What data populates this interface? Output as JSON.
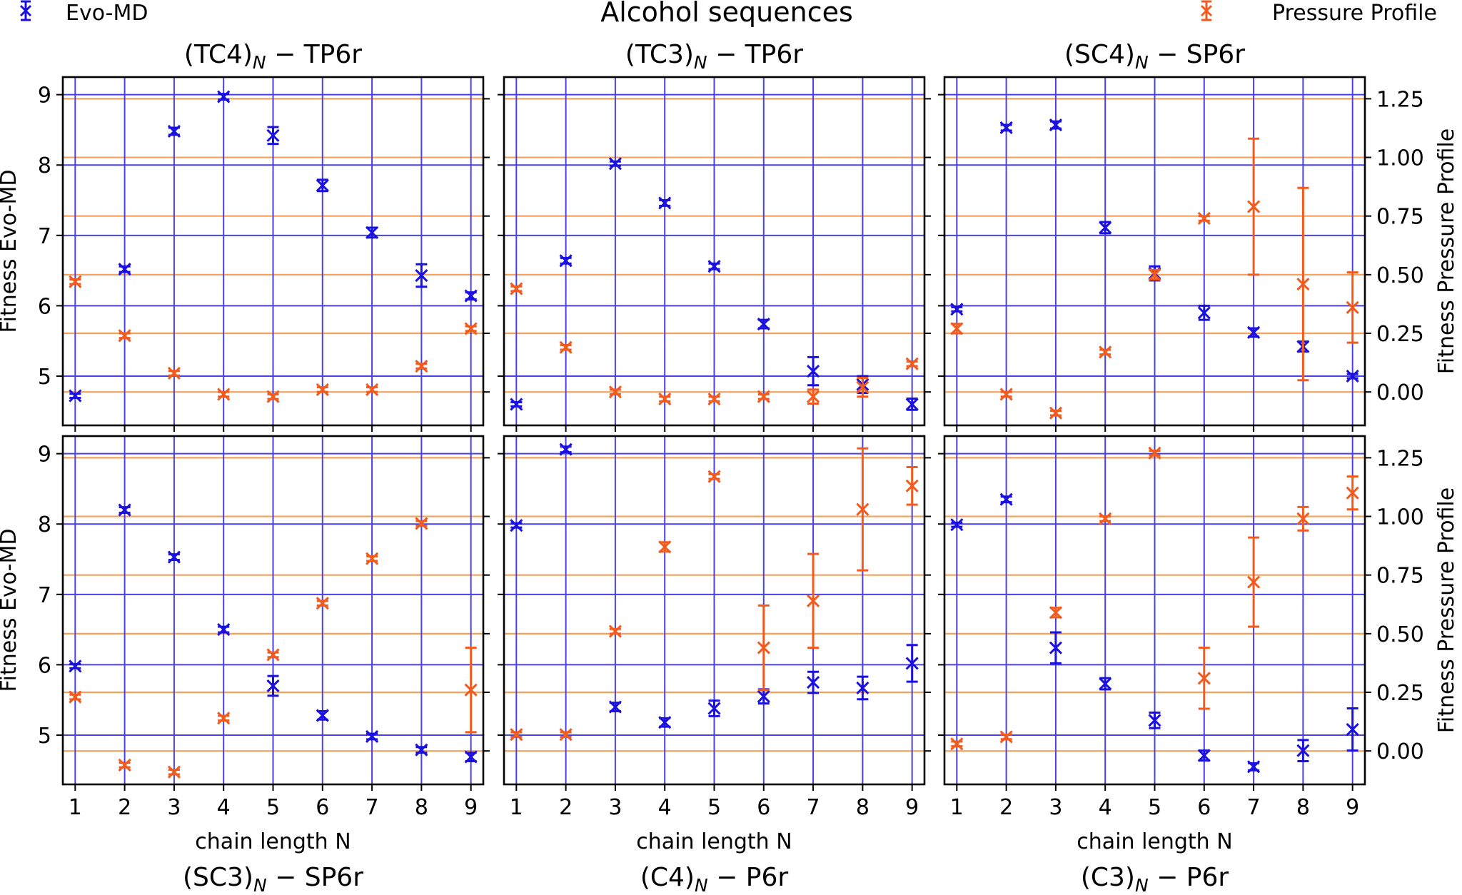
{
  "figure": {
    "suptitle": "Alcohol sequences",
    "legend": [
      {
        "label": "Evo-MD",
        "color": "#1a10e0",
        "position": "top-left"
      },
      {
        "label": "Pressure Profile",
        "color": "#f25a1e",
        "position": "top-right"
      }
    ],
    "colors": {
      "evo": "#1a10e0",
      "evo_grid": "#4a40e6",
      "pp": "#f25a1e",
      "pp_grid": "#f5a15c",
      "frame": "#000000"
    }
  },
  "chart_data": [
    {
      "type": "scatter",
      "title_base": "(TC4)",
      "title_sub": "N",
      "title_tail": " − TP6r",
      "xlabel": "",
      "ylabel": "Fitness Evo-MD",
      "y2label": "",
      "x": [
        1,
        2,
        3,
        4,
        5,
        6,
        7,
        8,
        9
      ],
      "xlim": [
        0.75,
        9.25
      ],
      "ylim": [
        4.3,
        9.25
      ],
      "y2lim": [
        -0.1425,
        1.3425
      ],
      "yticks": [
        5,
        6,
        7,
        8,
        9
      ],
      "y2ticks": [
        0.0,
        0.25,
        0.5,
        0.75,
        1.0,
        1.25
      ],
      "show_xticklabels": false,
      "show_yticklabels": true,
      "show_y2ticklabels": false,
      "series": [
        {
          "name": "Evo-MD",
          "axis": "left",
          "values": [
            4.72,
            6.52,
            8.48,
            8.97,
            8.42,
            7.71,
            7.04,
            6.43,
            6.14
          ],
          "errors": [
            0.03,
            0.04,
            0.05,
            0.04,
            0.12,
            0.08,
            0.07,
            0.16,
            0.05
          ]
        },
        {
          "name": "Pressure Profile",
          "axis": "right",
          "values": [
            0.47,
            0.24,
            0.08,
            -0.01,
            -0.02,
            0.01,
            0.01,
            0.11,
            0.27
          ],
          "errors": [
            0.01,
            0.01,
            0.01,
            0.01,
            0.01,
            0.01,
            0.01,
            0.01,
            0.01
          ]
        }
      ]
    },
    {
      "type": "scatter",
      "title_base": "(TC3)",
      "title_sub": "N",
      "title_tail": " − TP6r",
      "xlabel": "",
      "ylabel": "",
      "y2label": "",
      "x": [
        1,
        2,
        3,
        4,
        5,
        6,
        7,
        8,
        9
      ],
      "xlim": [
        0.75,
        9.25
      ],
      "ylim": [
        4.3,
        9.25
      ],
      "y2lim": [
        -0.1425,
        1.3425
      ],
      "yticks": [
        5,
        6,
        7,
        8,
        9
      ],
      "y2ticks": [
        0.0,
        0.25,
        0.5,
        0.75,
        1.0,
        1.25
      ],
      "show_xticklabels": false,
      "show_yticklabels": false,
      "show_y2ticklabels": false,
      "series": [
        {
          "name": "Evo-MD",
          "axis": "left",
          "values": [
            4.6,
            6.64,
            8.02,
            7.46,
            6.56,
            5.74,
            5.07,
            4.88,
            4.6
          ],
          "errors": [
            0.03,
            0.04,
            0.03,
            0.04,
            0.04,
            0.06,
            0.2,
            0.12,
            0.08
          ]
        },
        {
          "name": "Pressure Profile",
          "axis": "right",
          "values": [
            0.44,
            0.19,
            0.0,
            -0.03,
            -0.03,
            -0.02,
            -0.02,
            0.02,
            0.12
          ],
          "errors": [
            0.01,
            0.01,
            0.01,
            0.01,
            0.01,
            0.01,
            0.03,
            0.04,
            0.01
          ]
        }
      ]
    },
    {
      "type": "scatter",
      "title_base": "(SC4)",
      "title_sub": "N",
      "title_tail": " − SP6r",
      "xlabel": "",
      "ylabel": "",
      "y2label": "Fitness Pressure Profile",
      "x": [
        1,
        2,
        3,
        4,
        5,
        6,
        7,
        8,
        9
      ],
      "xlim": [
        0.75,
        9.25
      ],
      "ylim": [
        4.3,
        9.25
      ],
      "y2lim": [
        -0.1425,
        1.3425
      ],
      "yticks": [
        5,
        6,
        7,
        8,
        9
      ],
      "y2ticks": [
        0.0,
        0.25,
        0.5,
        0.75,
        1.0,
        1.25
      ],
      "show_xticklabels": false,
      "show_yticklabels": false,
      "show_y2ticklabels": true,
      "series": [
        {
          "name": "Evo-MD",
          "axis": "left",
          "values": [
            5.95,
            8.53,
            8.57,
            7.11,
            6.46,
            5.9,
            5.62,
            5.42,
            5.0
          ],
          "errors": [
            0.03,
            0.04,
            0.05,
            0.08,
            0.1,
            0.1,
            0.06,
            0.07,
            0.03
          ]
        },
        {
          "name": "Pressure Profile",
          "axis": "right",
          "values": [
            0.27,
            -0.01,
            -0.09,
            0.17,
            0.5,
            0.74,
            0.79,
            0.46,
            0.36
          ],
          "errors": [
            0.02,
            0.01,
            0.01,
            0.01,
            0.02,
            0.01,
            0.29,
            0.41,
            0.15
          ]
        }
      ]
    },
    {
      "type": "scatter",
      "title_base": "(SC3)",
      "title_sub": "N",
      "title_tail": " − SP6r",
      "xlabel": "chain length N",
      "ylabel": "Fitness Evo-MD",
      "y2label": "",
      "x": [
        1,
        2,
        3,
        4,
        5,
        6,
        7,
        8,
        9
      ],
      "xlim": [
        0.75,
        9.25
      ],
      "ylim": [
        4.3,
        9.25
      ],
      "y2lim": [
        -0.1425,
        1.3425
      ],
      "yticks": [
        5,
        6,
        7,
        8,
        9
      ],
      "y2ticks": [
        0.0,
        0.25,
        0.5,
        0.75,
        1.0,
        1.25
      ],
      "show_xticklabels": true,
      "show_yticklabels": true,
      "show_y2ticklabels": false,
      "series": [
        {
          "name": "Evo-MD",
          "axis": "left",
          "values": [
            5.98,
            8.2,
            7.53,
            6.5,
            5.7,
            5.28,
            4.98,
            4.79,
            4.69
          ],
          "errors": [
            0.03,
            0.04,
            0.04,
            0.04,
            0.14,
            0.06,
            0.04,
            0.04,
            0.06
          ]
        },
        {
          "name": "Pressure Profile",
          "axis": "right",
          "values": [
            0.23,
            -0.06,
            -0.09,
            0.14,
            0.41,
            0.63,
            0.82,
            0.97,
            0.26
          ],
          "errors": [
            0.01,
            0.01,
            0.01,
            0.01,
            0.01,
            0.01,
            0.01,
            0.01,
            0.18
          ]
        }
      ]
    },
    {
      "type": "scatter",
      "title_base": "(C4)",
      "title_sub": "N",
      "title_tail": " − P6r",
      "xlabel": "chain length N",
      "ylabel": "",
      "y2label": "",
      "x": [
        1,
        2,
        3,
        4,
        5,
        6,
        7,
        8,
        9
      ],
      "xlim": [
        0.75,
        9.25
      ],
      "ylim": [
        4.3,
        9.25
      ],
      "y2lim": [
        -0.1425,
        1.3425
      ],
      "yticks": [
        5,
        6,
        7,
        8,
        9
      ],
      "y2ticks": [
        0.0,
        0.25,
        0.5,
        0.75,
        1.0,
        1.25
      ],
      "show_xticklabels": true,
      "show_yticklabels": false,
      "show_y2ticklabels": false,
      "series": [
        {
          "name": "Evo-MD",
          "axis": "left",
          "values": [
            7.98,
            9.06,
            5.4,
            5.18,
            5.38,
            5.55,
            5.75,
            5.67,
            6.02
          ],
          "errors": [
            0.03,
            0.04,
            0.06,
            0.06,
            0.11,
            0.1,
            0.15,
            0.16,
            0.26
          ]
        },
        {
          "name": "Pressure Profile",
          "axis": "right",
          "values": [
            0.07,
            0.07,
            0.51,
            0.87,
            1.17,
            0.44,
            0.64,
            1.03,
            1.13
          ],
          "errors": [
            0.01,
            0.01,
            0.01,
            0.02,
            0.01,
            0.18,
            0.2,
            0.26,
            0.08
          ]
        }
      ]
    },
    {
      "type": "scatter",
      "title_base": "(C3)",
      "title_sub": "N",
      "title_tail": " − P6r",
      "xlabel": "chain length N",
      "ylabel": "",
      "y2label": "Fitness Pressure Profile",
      "x": [
        1,
        2,
        3,
        4,
        5,
        6,
        7,
        8,
        9
      ],
      "xlim": [
        0.75,
        9.25
      ],
      "ylim": [
        4.3,
        9.25
      ],
      "y2lim": [
        -0.1425,
        1.3425
      ],
      "yticks": [
        5,
        6,
        7,
        8,
        9
      ],
      "y2ticks": [
        0.0,
        0.25,
        0.5,
        0.75,
        1.0,
        1.25
      ],
      "show_xticklabels": true,
      "show_yticklabels": false,
      "show_y2ticklabels": true,
      "series": [
        {
          "name": "Evo-MD",
          "axis": "left",
          "values": [
            7.99,
            8.35,
            6.24,
            5.73,
            5.21,
            4.71,
            4.55,
            4.78,
            5.08
          ],
          "errors": [
            0.03,
            0.04,
            0.22,
            0.08,
            0.11,
            0.07,
            0.05,
            0.15,
            0.3
          ]
        },
        {
          "name": "Pressure Profile",
          "axis": "right",
          "values": [
            0.03,
            0.06,
            0.59,
            0.99,
            1.27,
            0.31,
            0.72,
            0.99,
            1.1
          ],
          "errors": [
            0.01,
            0.01,
            0.02,
            0.01,
            0.01,
            0.13,
            0.19,
            0.05,
            0.07
          ]
        }
      ]
    }
  ]
}
